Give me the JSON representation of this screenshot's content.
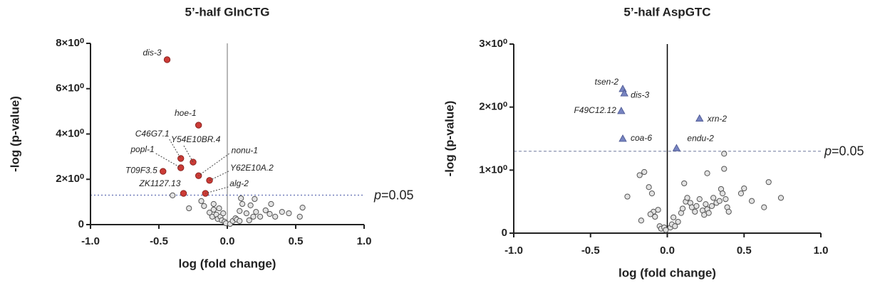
{
  "chart_data": [
    {
      "type": "scatter",
      "title": "5’-half GlnCTG",
      "xlabel": "log (fold change)",
      "ylabel": "-log (p-value)",
      "xlim": [
        -1.0,
        1.0
      ],
      "xticks": [
        {
          "value": -1.0,
          "label": "-1.0"
        },
        {
          "value": -0.5,
          "label": "-0.5"
        },
        {
          "value": 0,
          "label": "0.0"
        },
        {
          "value": 0.5,
          "label": "0.5"
        },
        {
          "value": 1.0,
          "label": "1.0"
        }
      ],
      "ylim": [
        0,
        8
      ],
      "yticks": [
        0,
        {
          "value": 2,
          "label": "2×10⁰"
        },
        {
          "value": 4,
          "label": "4×10⁰"
        },
        {
          "value": 6,
          "label": "6×10⁰"
        },
        {
          "value": 8,
          "label": "8×10⁰"
        }
      ],
      "threshold": {
        "value": 1.3,
        "label": [
          "p",
          "=0.05"
        ]
      },
      "series": [
        {
          "color": "#e2e2e2",
          "marker": "circle",
          "x": [
            -0.4,
            -0.28,
            -0.19,
            -0.17,
            -0.13,
            -0.11,
            -0.1,
            -0.08,
            -0.07,
            -0.05,
            -0.04,
            -0.03,
            -0.02,
            -0.01,
            0.02,
            0.04,
            0.06,
            0.07,
            0.09,
            0.09,
            0.11,
            0.14,
            0.17,
            0.19,
            0.21,
            0.24,
            0.28,
            0.31,
            0.32,
            0.35,
            0.4,
            0.45,
            0.53,
            0.55,
            0.2,
            0.1,
            -0.1,
            -0.06,
            0.16
          ],
          "values": [
            1.29,
            0.72,
            1.04,
            0.82,
            0.53,
            0.35,
            0.66,
            0.44,
            0.25,
            0.35,
            0.19,
            0.5,
            0.13,
            0.06,
            0.03,
            0.16,
            0.28,
            0.22,
            0.16,
            0.6,
            0.91,
            0.5,
            0.85,
            0.35,
            0.56,
            0.35,
            0.63,
            0.47,
            0.91,
            0.35,
            0.56,
            0.5,
            0.35,
            0.75,
            1.13,
            1.16,
            0.91,
            0.72,
            0.19
          ]
        },
        {
          "color": "#cc3b36",
          "marker": "circle",
          "x": [
            -0.44,
            -0.21,
            -0.34,
            -0.25,
            -0.34,
            -0.21,
            -0.13,
            -0.47,
            -0.32,
            -0.16
          ],
          "values": [
            7.28,
            4.39,
            2.92,
            2.76,
            2.51,
            2.16,
            1.95,
            2.35,
            1.38,
            1.38
          ],
          "labels": [
            "dis-3",
            "hoe-1",
            "C46G7.1",
            "Y54E10BR.4",
            "popl-1",
            "nonu-1",
            "Y62E10A.2",
            "T09F3.5",
            "ZK1127.13",
            "alg-2"
          ]
        }
      ]
    },
    {
      "type": "scatter",
      "title": "5’-half AspGTC",
      "xlabel": "log (fold change)",
      "ylabel": "-log (p-value)",
      "xlim": [
        -1.0,
        1.0
      ],
      "xticks": [
        {
          "value": -1.0,
          "label": "-1.0"
        },
        {
          "value": -0.5,
          "label": "-0.5"
        },
        {
          "value": 0,
          "label": "0.0"
        },
        {
          "value": 0.5,
          "label": "0.5"
        },
        {
          "value": 1.0,
          "label": "1.0"
        }
      ],
      "ylim": [
        0,
        3
      ],
      "yticks": [
        0,
        {
          "value": 1,
          "label": "1×10⁰"
        },
        {
          "value": 2,
          "label": "2×10⁰"
        },
        {
          "value": 3,
          "label": "3×10⁰"
        }
      ],
      "threshold": {
        "value": 1.3,
        "label": [
          "p",
          "=0.05"
        ]
      },
      "series": [
        {
          "color": "#e2e2e2",
          "marker": "circle",
          "x": [
            -0.26,
            -0.18,
            -0.15,
            -0.12,
            -0.1,
            -0.09,
            -0.11,
            -0.08,
            -0.06,
            -0.05,
            -0.04,
            -0.02,
            -0.01,
            0.02,
            0.03,
            0.05,
            0.07,
            0.09,
            0.1,
            0.12,
            0.13,
            0.15,
            0.16,
            0.18,
            0.19,
            0.21,
            0.23,
            0.24,
            0.25,
            0.26,
            0.27,
            0.29,
            0.3,
            0.32,
            0.34,
            0.35,
            0.36,
            0.38,
            0.39,
            0.37,
            0.37,
            0.26,
            0.11,
            0.48,
            0.5,
            0.55,
            0.63,
            0.66,
            0.74,
            0.4,
            0.04,
            -0.17
          ],
          "values": [
            0.58,
            0.92,
            0.97,
            0.73,
            0.63,
            0.34,
            0.3,
            0.26,
            0.37,
            0.11,
            0.07,
            0.09,
            0.05,
            0.09,
            0.14,
            0.11,
            0.18,
            0.32,
            0.39,
            0.5,
            0.56,
            0.48,
            0.41,
            0.34,
            0.43,
            0.54,
            0.36,
            0.29,
            0.46,
            0.38,
            0.32,
            0.43,
            0.56,
            0.48,
            0.51,
            0.7,
            0.63,
            0.54,
            0.41,
            1.02,
            1.26,
            0.95,
            0.79,
            0.63,
            0.71,
            0.51,
            0.41,
            0.81,
            0.56,
            0.34,
            0.25,
            0.2
          ]
        },
        {
          "color": "#7683c0",
          "marker": "triangle",
          "x": [
            -0.29,
            -0.28,
            -0.3,
            -0.29,
            0.21,
            0.06
          ],
          "values": [
            2.29,
            2.22,
            1.94,
            1.5,
            1.82,
            1.35
          ],
          "labels": [
            "tsen-2",
            "dis-3",
            "F49C12.12",
            "coa-6",
            "xrn-2",
            "endu-2"
          ]
        }
      ]
    }
  ]
}
